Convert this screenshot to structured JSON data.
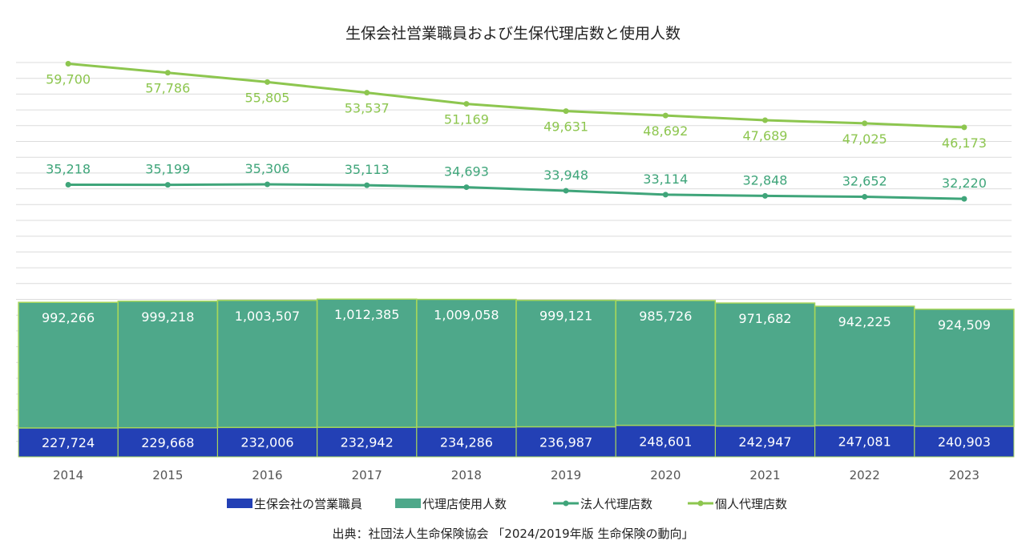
{
  "chart_data": {
    "type": "bar",
    "title": "生保会社営業職員および生保代理店数と使用人数",
    "categories": [
      "2014",
      "2015",
      "2016",
      "2017",
      "2018",
      "2019",
      "2020",
      "2021",
      "2022",
      "2023"
    ],
    "bar_series": [
      {
        "name": "生保会社の営業職員",
        "color": "#2340b5",
        "values": [
          227724,
          229668,
          232006,
          232942,
          234286,
          236987,
          248601,
          242947,
          247081,
          240903
        ],
        "labels": [
          "227,724",
          "229,668",
          "232,006",
          "232,942",
          "234,286",
          "236,987",
          "248,601",
          "242,947",
          "247,081",
          "240,903"
        ]
      },
      {
        "name": "代理店使用人数",
        "color": "#4ea88a",
        "values": [
          992266,
          999218,
          1003507,
          1012385,
          1009058,
          999121,
          985726,
          971682,
          942225,
          924509
        ],
        "labels": [
          "992,266",
          "999,218",
          "1,003,507",
          "1,012,385",
          "1,009,058",
          "999,121",
          "985,726",
          "971,682",
          "942,225",
          "924,509"
        ]
      }
    ],
    "line_series": [
      {
        "name": "法人代理店数",
        "color": "#3fa57a",
        "values": [
          35218,
          35199,
          35306,
          35113,
          34693,
          33948,
          33114,
          32848,
          32652,
          32220
        ],
        "labels": [
          "35,218",
          "35,199",
          "35,306",
          "35,113",
          "34,693",
          "33,948",
          "33,114",
          "32,848",
          "32,652",
          "32,220"
        ]
      },
      {
        "name": "個人代理店数",
        "color": "#8dc64f",
        "values": [
          59700,
          57786,
          55805,
          53537,
          51169,
          49631,
          48692,
          47689,
          47025,
          46173
        ],
        "labels": [
          "59,700",
          "57,786",
          "55,805",
          "53,537",
          "51,169",
          "49,631",
          "48,692",
          "47,689",
          "47,025",
          "46,173"
        ]
      }
    ],
    "legend_position": "bottom",
    "grid": true
  },
  "source": "出典：社団法人生命保険協会 「2024/2019年版 生命保険の動向」"
}
